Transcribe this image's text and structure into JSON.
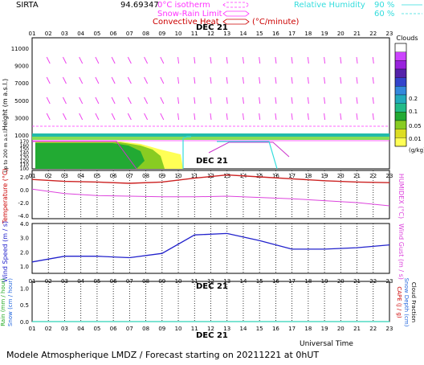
{
  "header": {
    "site": "SIRTA",
    "station_code": "94.69347",
    "legend_isotherm": "0°C isotherm",
    "legend_rain_snow": "Snow-Rain Limit",
    "legend_convective": "Convective Heat",
    "legend_convective_unit": "(°C/minute)",
    "legend_rh": "Relative Humidity",
    "rh_90": "90 %",
    "rh_60": "60 %"
  },
  "hours": [
    "01",
    "02",
    "03",
    "04",
    "05",
    "06",
    "07",
    "08",
    "09",
    "10",
    "11",
    "12",
    "13",
    "14",
    "15",
    "16",
    "17",
    "18",
    "19",
    "20",
    "21",
    "22",
    "23"
  ],
  "date_label": "DEC 21",
  "panel_height": {
    "ylabel": "Height (m a.s.l.)",
    "ticks": [
      "1000",
      "3000",
      "5000",
      "7000",
      "9000",
      "11000"
    ]
  },
  "panel_low": {
    "ylabel": "Up to 200 m a.s.l.",
    "ticks": [
      "100",
      "110",
      "120",
      "130",
      "140",
      "150",
      "160",
      "170"
    ]
  },
  "panel_temp": {
    "ylabel": "Temperature (°C)",
    "ticks": [
      "2.0",
      "0.0",
      "-2.0",
      "-4.0"
    ],
    "ylabel_right": "HUMIDEX (°C)"
  },
  "panel_wind": {
    "ylabel": "Wind Speed (m / s)",
    "ticks": [
      "4.0",
      "3.0",
      "2.0",
      "1.0"
    ],
    "ylabel_right": "Wind Gust (m / s)"
  },
  "panel_precip": {
    "ylabel_rain": "Rain (mm / hour)",
    "ylabel_snow": "Snow (cm / hour)",
    "ticks": [
      "0.0",
      "0.5",
      "1.0"
    ],
    "ylabel_right_1": "CAPE (J / g)",
    "ylabel_right_2": "Snow Depth (cm)",
    "ylabel_right_3": "Cloud Fraction"
  },
  "clouds_legend": {
    "title": "Clouds",
    "unit": "(g/kg)",
    "labels": [
      "0.2",
      "0.1",
      "0.05",
      "0.01"
    ],
    "colors": [
      "#ffffff",
      "#cc44ff",
      "#9922dd",
      "#5522aa",
      "#3344cc",
      "#3388dd",
      "#22aabb",
      "#22bb88",
      "#22aa33",
      "#88cc22",
      "#dddd22",
      "#ffff55"
    ]
  },
  "footer": {
    "title": "Modele Atmospherique LMDZ / Forecast starting on 20211221 at 0hUT",
    "xlabel": "Universal Time"
  },
  "colors": {
    "isotherm": "#ff33ff",
    "convective": "#cc0000",
    "rh": "#33dddd",
    "temperature": "#cc2222",
    "humidex": "#dd44dd",
    "wind": "#2222cc",
    "rain": "#22aa22"
  },
  "chart_data": {
    "type": "line",
    "categories": [
      "01",
      "02",
      "03",
      "04",
      "05",
      "06",
      "07",
      "08",
      "09",
      "10",
      "11",
      "12",
      "13",
      "14",
      "15",
      "16",
      "17",
      "18",
      "19",
      "20",
      "21",
      "22",
      "23"
    ],
    "temperature": {
      "ylim": [
        -4.5,
        3.0
      ],
      "x": [
        "01",
        "03",
        "05",
        "07",
        "09",
        "11",
        "13",
        "15",
        "17",
        "19",
        "21",
        "23"
      ],
      "temperature_values": [
        1.6,
        1.3,
        1.2,
        1.0,
        1.2,
        1.8,
        2.3,
        2.0,
        1.7,
        1.4,
        1.2,
        1.1
      ],
      "humidex_values": [
        0.1,
        -0.6,
        -0.9,
        -1.0,
        -1.1,
        -1.1,
        -1.0,
        -1.2,
        -1.4,
        -1.7,
        -2.0,
        -2.5
      ]
    },
    "wind": {
      "ylim": [
        0.5,
        4.0
      ],
      "x": [
        "01",
        "03",
        "05",
        "07",
        "09",
        "11",
        "13",
        "15",
        "17",
        "19",
        "21",
        "23"
      ],
      "values": [
        1.3,
        1.7,
        1.7,
        1.6,
        1.9,
        3.2,
        3.3,
        2.8,
        2.2,
        2.2,
        2.3,
        2.5
      ]
    },
    "precip": {
      "ylim": [
        0.0,
        1.2
      ],
      "x": [
        "01",
        "23"
      ],
      "rain_values": [
        0.0,
        0.0
      ],
      "snow_values": [
        0.0,
        0.0
      ]
    }
  }
}
